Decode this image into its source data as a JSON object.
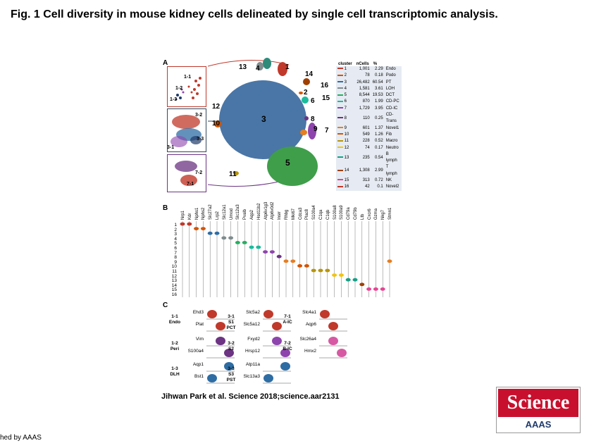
{
  "title": "Fig. 1 Cell diversity in mouse kidney cells delineated by single cell transcriptomic analysis.",
  "caption": "Jihwan Park et al. Science 2018;science.aar2131",
  "footer": "hed by AAAS",
  "logo": {
    "top": "Science",
    "bottom": "AAAS"
  },
  "panels": {
    "a": "A",
    "b": "B",
    "c": "C"
  },
  "panel_a": {
    "inset_labels": [
      "1-1",
      "1-2",
      "1-3",
      "3-2",
      "3-1",
      "3-3",
      "7-2",
      "7-1"
    ],
    "cluster_labels": [
      "13",
      "4",
      "1",
      "14",
      "2",
      "16",
      "15",
      "6",
      "12",
      "10",
      "3",
      "9",
      "8",
      "7",
      "11",
      "5"
    ],
    "table": {
      "headers": [
        "cluster",
        "nCells",
        "%",
        ""
      ],
      "rows": [
        {
          "color": "#c0392b",
          "cluster": "1",
          "n": "1,001",
          "pct": "2.29",
          "type": "Endo"
        },
        {
          "color": "#d35400",
          "cluster": "2",
          "n": "78",
          "pct": "0.18",
          "type": "Podo"
        },
        {
          "color": "#2e6da4",
          "cluster": "3",
          "n": "26,482",
          "pct": "60.54",
          "type": "PT"
        },
        {
          "color": "#7f8c8d",
          "cluster": "4",
          "n": "1,581",
          "pct": "3.61",
          "type": "LOH"
        },
        {
          "color": "#27ae60",
          "cluster": "5",
          "n": "8,544",
          "pct": "19.53",
          "type": "DCT"
        },
        {
          "color": "#1abc9c",
          "cluster": "6",
          "n": "870",
          "pct": "1.99",
          "type": "CD-PC"
        },
        {
          "color": "#8e44ad",
          "cluster": "7",
          "n": "1,729",
          "pct": "3.95",
          "type": "CD-IC"
        },
        {
          "color": "#6c3483",
          "cluster": "8",
          "n": "110",
          "pct": "0.25",
          "type": "CD-Trans"
        },
        {
          "color": "#e67e22",
          "cluster": "9",
          "n": "601",
          "pct": "1.37",
          "type": "Novel1"
        },
        {
          "color": "#d35400",
          "cluster": "10",
          "n": "549",
          "pct": "1.26",
          "type": "Fib"
        },
        {
          "color": "#b7950b",
          "cluster": "11",
          "n": "228",
          "pct": "0.52",
          "type": "Macro"
        },
        {
          "color": "#f1c40f",
          "cluster": "12",
          "n": "74",
          "pct": "0.17",
          "type": "Neutro"
        },
        {
          "color": "#16a085",
          "cluster": "13",
          "n": "235",
          "pct": "0.54",
          "type": "B lymph"
        },
        {
          "color": "#a04000",
          "cluster": "14",
          "n": "1,308",
          "pct": "2.99",
          "type": "T lymph"
        },
        {
          "color": "#e84393",
          "cluster": "15",
          "n": "313",
          "pct": "0.72",
          "type": "NK"
        },
        {
          "color": "#c0392b",
          "cluster": "16",
          "n": "42",
          "pct": "0.1",
          "type": "Novel2"
        }
      ]
    }
  },
  "panel_b": {
    "genes": [
      "Nrp1",
      "Kdr",
      "Nphs1",
      "Nphs2",
      "Slc27a2",
      "Lrp2",
      "Slc12a1",
      "Umod",
      "Slc12a3",
      "Pvalb",
      "Aqp2",
      "Hsd11b2",
      "Atp6v1g3",
      "Atp6v0d2",
      "Insrr",
      "Rhbg",
      "Mki67",
      "Cdca3",
      "Plac8",
      "S100a4",
      "C1qa",
      "C1qb",
      "S100a8",
      "S100a9",
      "Cd79a",
      "Cd79b",
      "Ltb",
      "Cxcr6",
      "Gzma",
      "Nkg7",
      "Stmn1"
    ],
    "rows": [
      "1",
      "2",
      "3",
      "4",
      "5",
      "6",
      "7",
      "8",
      "9",
      "10",
      "11",
      "12",
      "13",
      "14",
      "15",
      "16"
    ]
  },
  "panel_c": {
    "groups": [
      {
        "id": "1-1",
        "name": "Endo",
        "genes": [
          "Ehd3",
          "Plat"
        ]
      },
      {
        "id": "1-2",
        "name": "Peri",
        "genes": [
          "Vim",
          "S100a4"
        ]
      },
      {
        "id": "1-3",
        "name": "DLH",
        "genes": [
          "Aqp1",
          "Bst1"
        ]
      },
      {
        "id": "3-1",
        "sub": "S1",
        "name": "PCT",
        "genes": [
          "Slc5a2",
          "Slc5a12"
        ]
      },
      {
        "id": "3-2",
        "name": "S2",
        "genes": [
          "Fxyd2",
          "Hrsp12"
        ]
      },
      {
        "id": "3-3",
        "sub": "S3",
        "name": "PST",
        "genes": [
          "Atp11a",
          "Slc13a3"
        ]
      },
      {
        "id": "7-1",
        "name": "A-IC",
        "genes": [
          "Slc4a1",
          "Aqp6"
        ]
      },
      {
        "id": "7-2",
        "name": "B-IC",
        "genes": [
          "Slc26a4",
          "Hmx2"
        ]
      }
    ]
  }
}
